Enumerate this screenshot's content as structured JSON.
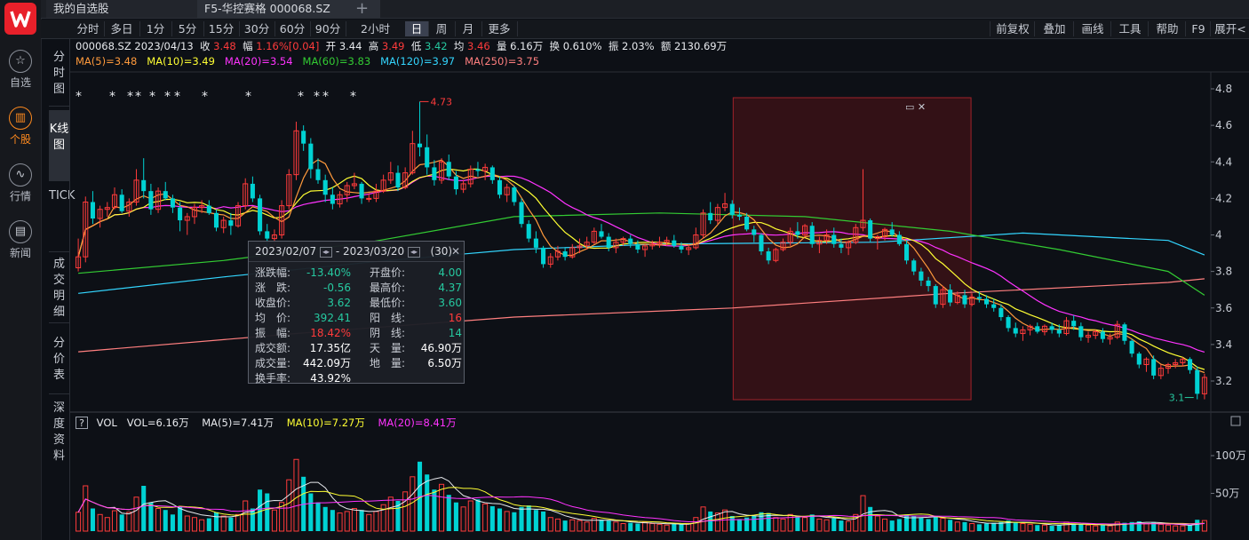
{
  "app": {
    "nav": [
      {
        "label": "自选",
        "icon": "star-icon"
      },
      {
        "label": "个股",
        "icon": "candlestick-icon",
        "active": true
      },
      {
        "label": "行情",
        "icon": "trend-icon"
      },
      {
        "label": "新闻",
        "icon": "news-icon"
      }
    ]
  },
  "tabs": [
    {
      "label": "我的自选股"
    },
    {
      "label": "F5-华控赛格 000068.SZ"
    }
  ],
  "periods": [
    "分时",
    "多日",
    "1分",
    "5分",
    "15分",
    "30分",
    "60分",
    "90分",
    "2小时",
    "日",
    "周",
    "月",
    "更多"
  ],
  "active_period": "日",
  "tools": [
    "前复权",
    "叠加",
    "画线",
    "工具",
    "帮助",
    "F9",
    "展开<"
  ],
  "side_tabs": [
    "分时图",
    "K线图",
    "TICK",
    "成交明细",
    "分价表",
    "深度资料"
  ],
  "info": {
    "code_date": "000068.SZ 2023/04/13",
    "close_label": "收",
    "close": "3.48",
    "chg_label": "幅",
    "chg": "1.16%[0.04]",
    "open_label": "开",
    "open": "3.44",
    "high_label": "高",
    "high": "3.49",
    "low_label": "低",
    "low": "3.42",
    "avg_label": "均",
    "avg": "3.46",
    "vol_label": "量",
    "vol": "6.16万",
    "turn_label": "换",
    "turn": "0.610%",
    "amp_label": "振",
    "amp": "2.03%",
    "amt_label": "额",
    "amt": "2130.69万"
  },
  "ma": [
    {
      "label": "MA(5)=3.48",
      "color": "#ff9a3c"
    },
    {
      "label": "MA(10)=3.49",
      "color": "#ffff33"
    },
    {
      "label": "MA(20)=3.54",
      "color": "#ff33ff"
    },
    {
      "label": "MA(60)=3.83",
      "color": "#33cc33"
    },
    {
      "label": "MA(120)=3.97",
      "color": "#33d6ff"
    },
    {
      "label": "MA(250)=3.75",
      "color": "#ff7f7f"
    }
  ],
  "popup": {
    "range_start": "2023/02/07",
    "range_sep": "-",
    "range_end": "2023/03/20",
    "count": "(30)",
    "left": [
      {
        "label": "涨跌幅:",
        "value": "-13.40%",
        "color": "#26c9a0"
      },
      {
        "label": "涨　跌:",
        "value": "-0.56",
        "color": "#26c9a0"
      },
      {
        "label": "收盘价:",
        "value": "3.62",
        "color": "#26c9a0"
      },
      {
        "label": "均　价:",
        "value": "392.41",
        "color": "#26c9a0"
      },
      {
        "label": "振　幅:",
        "value": "18.42%",
        "color": "#ff3b3b"
      },
      {
        "label": "成交额:",
        "value": "17.35亿",
        "color": "#ffffff"
      },
      {
        "label": "成交量:",
        "value": "442.09万",
        "color": "#ffffff"
      },
      {
        "label": "换手率:",
        "value": "43.92%",
        "color": "#ffffff"
      }
    ],
    "right": [
      {
        "label": "开盘价:",
        "value": "4.00",
        "color": "#26c9a0"
      },
      {
        "label": "最高价:",
        "value": "4.37",
        "color": "#26c9a0"
      },
      {
        "label": "最低价:",
        "value": "3.60",
        "color": "#26c9a0"
      },
      {
        "label": "阳　线:",
        "value": "16",
        "color": "#ff3b3b"
      },
      {
        "label": "阴　线:",
        "value": "14",
        "color": "#26c9a0"
      },
      {
        "label": "天　量:",
        "value": "46.90万",
        "color": "#ffffff"
      },
      {
        "label": "地　量:",
        "value": "6.50万",
        "color": "#ffffff"
      }
    ]
  },
  "volume_info": {
    "title": "VOL",
    "vol": "VOL=6.16万",
    "ma5": "MA(5)=7.41万",
    "ma10": "MA(10)=7.27万",
    "ma20": "MA(20)=8.41万"
  },
  "markers": {
    "max_label": "4.73",
    "min_label": "3.1",
    "star": "*"
  },
  "price_axis": [
    "4.8",
    "4.6",
    "4.4",
    "4.2",
    "4",
    "3.8",
    "3.6",
    "3.4",
    "3.2"
  ],
  "volume_axis": [
    "100万",
    "50万"
  ],
  "chart_data": {
    "type": "candlestick",
    "y_range": [
      3.1,
      4.8
    ],
    "volume_unit": "万",
    "candles": [
      [
        3.82,
        3.98,
        3.8,
        3.88,
        25
      ],
      [
        3.88,
        4.21,
        3.85,
        4.18,
        60
      ],
      [
        4.18,
        4.24,
        4.06,
        4.09,
        30
      ],
      [
        4.09,
        4.16,
        4.04,
        4.14,
        22
      ],
      [
        4.14,
        4.18,
        4.1,
        4.15,
        18
      ],
      [
        4.15,
        4.26,
        4.14,
        4.22,
        27
      ],
      [
        4.22,
        4.25,
        4.12,
        4.13,
        22
      ],
      [
        4.13,
        4.2,
        4.1,
        4.18,
        25
      ],
      [
        4.18,
        4.36,
        4.16,
        4.3,
        45
      ],
      [
        4.3,
        4.42,
        4.2,
        4.24,
        60
      ],
      [
        4.24,
        4.28,
        4.11,
        4.14,
        38
      ],
      [
        4.14,
        4.26,
        4.12,
        4.24,
        30
      ],
      [
        4.24,
        4.29,
        4.19,
        4.2,
        28
      ],
      [
        4.2,
        4.22,
        4.12,
        4.15,
        22
      ],
      [
        4.15,
        4.18,
        4.02,
        4.08,
        32
      ],
      [
        4.08,
        4.12,
        4.0,
        4.1,
        20
      ],
      [
        4.1,
        4.17,
        4.06,
        4.15,
        18
      ],
      [
        4.15,
        4.19,
        4.12,
        4.16,
        15
      ],
      [
        4.16,
        4.19,
        4.11,
        4.12,
        17
      ],
      [
        4.12,
        4.14,
        4.02,
        4.04,
        25
      ],
      [
        4.04,
        4.1,
        4.01,
        4.08,
        20
      ],
      [
        4.08,
        4.12,
        4.0,
        4.05,
        18
      ],
      [
        4.05,
        4.18,
        4.04,
        4.16,
        22
      ],
      [
        4.16,
        4.31,
        4.14,
        4.28,
        40
      ],
      [
        4.28,
        4.32,
        4.18,
        4.2,
        30
      ],
      [
        4.2,
        4.22,
        4.0,
        4.02,
        55
      ],
      [
        4.02,
        4.06,
        3.93,
        3.98,
        50
      ],
      [
        3.98,
        4.03,
        3.92,
        4.0,
        28
      ],
      [
        4.0,
        4.19,
        3.98,
        4.16,
        38
      ],
      [
        4.16,
        4.36,
        4.14,
        4.33,
        68
      ],
      [
        4.33,
        4.62,
        4.3,
        4.57,
        95
      ],
      [
        4.57,
        4.6,
        4.46,
        4.5,
        72
      ],
      [
        4.5,
        4.53,
        4.31,
        4.36,
        50
      ],
      [
        4.36,
        4.42,
        4.28,
        4.3,
        38
      ],
      [
        4.3,
        4.33,
        4.18,
        4.22,
        32
      ],
      [
        4.22,
        4.26,
        4.14,
        4.17,
        28
      ],
      [
        4.17,
        4.24,
        4.15,
        4.22,
        24
      ],
      [
        4.22,
        4.29,
        4.18,
        4.27,
        26
      ],
      [
        4.27,
        4.34,
        4.25,
        4.28,
        30
      ],
      [
        4.28,
        4.29,
        4.17,
        4.2,
        28
      ],
      [
        4.2,
        4.23,
        4.18,
        4.2,
        22
      ],
      [
        4.2,
        4.28,
        4.18,
        4.24,
        26
      ],
      [
        4.24,
        4.33,
        4.23,
        4.3,
        35
      ],
      [
        4.3,
        4.4,
        4.28,
        4.34,
        45
      ],
      [
        4.34,
        4.38,
        4.24,
        4.26,
        40
      ],
      [
        4.26,
        4.37,
        4.25,
        4.34,
        52
      ],
      [
        4.34,
        4.57,
        4.33,
        4.5,
        72
      ],
      [
        4.5,
        4.73,
        4.43,
        4.48,
        92
      ],
      [
        4.48,
        4.55,
        4.33,
        4.37,
        75
      ],
      [
        4.37,
        4.41,
        4.27,
        4.3,
        55
      ],
      [
        4.3,
        4.42,
        4.28,
        4.4,
        62
      ],
      [
        4.4,
        4.44,
        4.3,
        4.32,
        48
      ],
      [
        4.32,
        4.35,
        4.22,
        4.25,
        38
      ],
      [
        4.25,
        4.3,
        4.23,
        4.28,
        32
      ],
      [
        4.28,
        4.38,
        4.26,
        4.36,
        40
      ],
      [
        4.36,
        4.4,
        4.32,
        4.35,
        42
      ],
      [
        4.35,
        4.39,
        4.3,
        4.37,
        36
      ],
      [
        4.37,
        4.38,
        4.28,
        4.3,
        33
      ],
      [
        4.3,
        4.32,
        4.2,
        4.22,
        30
      ],
      [
        4.22,
        4.28,
        4.18,
        4.26,
        26
      ],
      [
        4.26,
        4.27,
        4.16,
        4.18,
        25
      ],
      [
        4.18,
        4.2,
        4.04,
        4.06,
        32
      ],
      [
        4.06,
        4.08,
        3.96,
        3.98,
        34
      ],
      [
        3.98,
        4.02,
        3.9,
        3.93,
        28
      ],
      [
        3.93,
        3.94,
        3.82,
        3.84,
        26
      ],
      [
        3.84,
        3.9,
        3.82,
        3.88,
        18
      ],
      [
        3.88,
        3.94,
        3.86,
        3.91,
        16
      ],
      [
        3.91,
        3.93,
        3.86,
        3.88,
        14
      ],
      [
        3.88,
        3.95,
        3.87,
        3.93,
        15
      ],
      [
        3.93,
        3.98,
        3.9,
        3.94,
        14
      ],
      [
        3.94,
        3.99,
        3.92,
        3.96,
        12
      ],
      [
        3.96,
        4.04,
        3.95,
        4.02,
        17
      ],
      [
        4.02,
        4.06,
        3.98,
        3.99,
        15
      ],
      [
        3.99,
        4.01,
        3.91,
        3.93,
        14
      ],
      [
        3.93,
        3.98,
        3.9,
        3.96,
        12
      ],
      [
        3.96,
        3.99,
        3.94,
        3.98,
        10
      ],
      [
        3.98,
        4.0,
        3.93,
        3.95,
        11
      ],
      [
        3.95,
        3.97,
        3.9,
        3.92,
        10
      ],
      [
        3.92,
        3.95,
        3.88,
        3.94,
        12
      ],
      [
        3.94,
        3.97,
        3.92,
        3.95,
        10
      ],
      [
        3.95,
        3.99,
        3.93,
        3.96,
        9
      ],
      [
        3.96,
        3.99,
        3.94,
        3.97,
        8
      ],
      [
        3.97,
        4.0,
        3.93,
        3.94,
        10
      ],
      [
        3.94,
        3.96,
        3.9,
        3.92,
        9
      ],
      [
        3.92,
        3.95,
        3.89,
        3.93,
        10
      ],
      [
        3.93,
        4.04,
        3.92,
        4.0,
        18
      ],
      [
        4.0,
        4.14,
        3.98,
        4.12,
        32
      ],
      [
        4.12,
        4.18,
        4.06,
        4.08,
        26
      ],
      [
        4.08,
        4.17,
        4.06,
        4.15,
        24
      ],
      [
        4.15,
        4.23,
        4.13,
        4.17,
        28
      ],
      [
        4.17,
        4.19,
        4.09,
        4.11,
        20
      ],
      [
        4.11,
        4.15,
        4.08,
        4.1,
        16
      ],
      [
        4.1,
        4.12,
        4.02,
        4.03,
        18
      ],
      [
        4.03,
        4.05,
        3.96,
        4.0,
        20
      ],
      [
        4.0,
        4.01,
        3.89,
        3.91,
        25
      ],
      [
        3.91,
        3.93,
        3.84,
        3.86,
        24
      ],
      [
        3.86,
        3.93,
        3.85,
        3.92,
        18
      ],
      [
        3.92,
        3.98,
        3.91,
        3.96,
        16
      ],
      [
        3.96,
        4.04,
        3.94,
        4.02,
        22
      ],
      [
        4.02,
        4.07,
        3.98,
        4.0,
        20
      ],
      [
        4.0,
        4.06,
        3.99,
        4.05,
        18
      ],
      [
        4.05,
        4.07,
        3.93,
        3.95,
        22
      ],
      [
        3.95,
        3.99,
        3.9,
        3.97,
        16
      ],
      [
        3.97,
        4.03,
        3.95,
        4.0,
        15
      ],
      [
        4.0,
        4.04,
        3.93,
        3.95,
        17
      ],
      [
        3.95,
        3.98,
        3.9,
        3.93,
        14
      ],
      [
        3.93,
        3.97,
        3.89,
        3.96,
        13
      ],
      [
        3.96,
        4.06,
        3.95,
        4.04,
        22
      ],
      [
        4.04,
        4.36,
        4.02,
        4.08,
        47
      ],
      [
        4.08,
        4.09,
        3.96,
        3.98,
        32
      ],
      [
        3.98,
        4.0,
        3.92,
        3.99,
        20
      ],
      [
        3.99,
        4.04,
        3.97,
        4.03,
        16
      ],
      [
        4.03,
        4.07,
        3.99,
        4.0,
        14
      ],
      [
        4.0,
        4.02,
        3.94,
        3.95,
        16
      ],
      [
        3.95,
        3.97,
        3.84,
        3.86,
        22
      ],
      [
        3.86,
        3.87,
        3.78,
        3.8,
        20
      ],
      [
        3.8,
        3.82,
        3.72,
        3.75,
        18
      ],
      [
        3.75,
        3.77,
        3.69,
        3.72,
        16
      ],
      [
        3.72,
        3.73,
        3.6,
        3.62,
        20
      ],
      [
        3.62,
        3.72,
        3.6,
        3.7,
        17
      ],
      [
        3.7,
        3.73,
        3.61,
        3.63,
        15
      ],
      [
        3.63,
        3.69,
        3.62,
        3.67,
        12
      ],
      [
        3.67,
        3.7,
        3.6,
        3.62,
        12
      ],
      [
        3.62,
        3.68,
        3.61,
        3.66,
        10
      ],
      [
        3.66,
        3.69,
        3.63,
        3.65,
        9
      ],
      [
        3.65,
        3.67,
        3.6,
        3.62,
        10
      ],
      [
        3.62,
        3.65,
        3.58,
        3.6,
        11
      ],
      [
        3.6,
        3.62,
        3.53,
        3.55,
        12
      ],
      [
        3.55,
        3.56,
        3.47,
        3.49,
        14
      ],
      [
        3.49,
        3.52,
        3.44,
        3.46,
        12
      ],
      [
        3.46,
        3.5,
        3.42,
        3.48,
        10
      ],
      [
        3.48,
        3.51,
        3.45,
        3.5,
        9
      ],
      [
        3.5,
        3.52,
        3.46,
        3.47,
        8
      ],
      [
        3.47,
        3.51,
        3.45,
        3.5,
        8
      ],
      [
        3.5,
        3.52,
        3.46,
        3.48,
        7
      ],
      [
        3.48,
        3.51,
        3.44,
        3.46,
        8
      ],
      [
        3.46,
        3.55,
        3.45,
        3.53,
        12
      ],
      [
        3.53,
        3.56,
        3.48,
        3.5,
        10
      ],
      [
        3.5,
        3.52,
        3.42,
        3.44,
        9
      ],
      [
        3.44,
        3.47,
        3.41,
        3.45,
        8
      ],
      [
        3.45,
        3.48,
        3.43,
        3.47,
        7
      ],
      [
        3.47,
        3.49,
        3.41,
        3.43,
        8
      ],
      [
        3.43,
        3.46,
        3.4,
        3.44,
        7
      ],
      [
        3.44,
        3.53,
        3.43,
        3.51,
        12
      ],
      [
        3.51,
        3.52,
        3.4,
        3.42,
        11
      ],
      [
        3.42,
        3.43,
        3.33,
        3.35,
        12
      ],
      [
        3.35,
        3.36,
        3.27,
        3.29,
        13
      ],
      [
        3.29,
        3.33,
        3.25,
        3.32,
        10
      ],
      [
        3.32,
        3.34,
        3.21,
        3.23,
        12
      ],
      [
        3.23,
        3.29,
        3.21,
        3.27,
        9
      ],
      [
        3.27,
        3.3,
        3.24,
        3.29,
        8
      ],
      [
        3.29,
        3.32,
        3.27,
        3.3,
        7
      ],
      [
        3.3,
        3.33,
        3.28,
        3.32,
        7
      ],
      [
        3.32,
        3.33,
        3.24,
        3.26,
        8
      ],
      [
        3.26,
        3.28,
        3.1,
        3.13,
        15
      ],
      [
        3.13,
        3.24,
        3.1,
        3.22,
        14
      ]
    ]
  }
}
